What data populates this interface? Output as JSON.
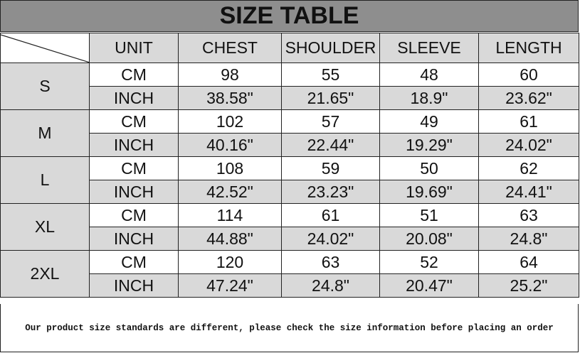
{
  "title": "SIZE TABLE",
  "headers": [
    "UNIT",
    "CHEST",
    "SHOULDER",
    "SLEEVE",
    "LENGTH"
  ],
  "rows": [
    {
      "size": "S",
      "cm": {
        "unit": "CM",
        "values": [
          "98",
          "55",
          "48",
          "60"
        ]
      },
      "inch": {
        "unit": "INCH",
        "values": [
          "38.58\"",
          "21.65\"",
          "18.9\"",
          "23.62\""
        ]
      }
    },
    {
      "size": "M",
      "cm": {
        "unit": "CM",
        "values": [
          "102",
          "57",
          "49",
          "61"
        ]
      },
      "inch": {
        "unit": "INCH",
        "values": [
          "40.16\"",
          "22.44\"",
          "19.29\"",
          "24.02\""
        ]
      }
    },
    {
      "size": "L",
      "cm": {
        "unit": "CM",
        "values": [
          "108",
          "59",
          "50",
          "62"
        ]
      },
      "inch": {
        "unit": "INCH",
        "values": [
          "42.52\"",
          "23.23\"",
          "19.69\"",
          "24.41\""
        ]
      }
    },
    {
      "size": "XL",
      "cm": {
        "unit": "CM",
        "values": [
          "114",
          "61",
          "51",
          "63"
        ]
      },
      "inch": {
        "unit": "INCH",
        "values": [
          "44.88\"",
          "24.02\"",
          "20.08\"",
          "24.8\""
        ]
      }
    },
    {
      "size": "2XL",
      "cm": {
        "unit": "CM",
        "values": [
          "120",
          "63",
          "52",
          "64"
        ]
      },
      "inch": {
        "unit": "INCH",
        "values": [
          "47.24\"",
          "24.8\"",
          "20.47\"",
          "25.2\""
        ]
      }
    }
  ],
  "footer": "Our product size standards are different, please check the size information before placing an order"
}
